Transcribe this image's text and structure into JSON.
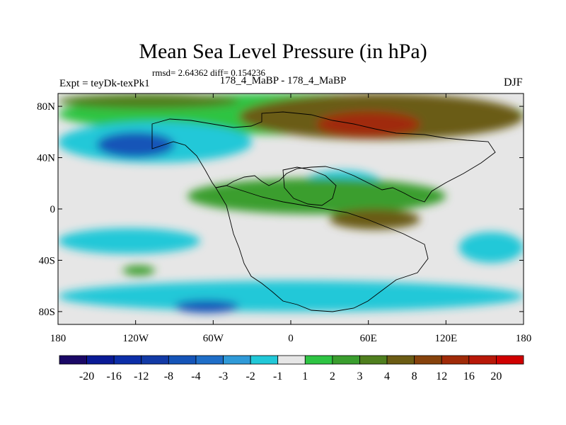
{
  "chart_data": {
    "type": "heatmap",
    "title": "Mean Sea Level Pressure (in hPa)",
    "subtitle": "rmsd= 2.64362 diff= 0.154236",
    "left_label": "Expt = teyDk-texPk1",
    "center_label": "178_4_MaBP - 178_4_MaBP",
    "right_label": "DJF",
    "x_ticks": [
      "180",
      "120W",
      "60W",
      "0",
      "60E",
      "120E",
      "180"
    ],
    "x_tick_values": [
      -180,
      -120,
      -60,
      0,
      60,
      120,
      180
    ],
    "y_ticks": [
      "80N",
      "40N",
      "0",
      "40S",
      "80S"
    ],
    "y_tick_values": [
      80,
      40,
      0,
      -40,
      -80
    ],
    "xlim": [
      -180,
      180
    ],
    "ylim": [
      -90,
      90
    ],
    "colorbar_levels": [
      "-20",
      "-16",
      "-12",
      "-8",
      "-4",
      "-3",
      "-2",
      "-1",
      "1",
      "2",
      "3",
      "4",
      "8",
      "12",
      "16",
      "20"
    ],
    "colorbar_colors": [
      "#1a0866",
      "#0a1a96",
      "#0c2ea8",
      "#123aa6",
      "#1554b8",
      "#1f6ec8",
      "#2f9ad8",
      "#21c8d8",
      "#e6e6e6",
      "#2ec443",
      "#3a9e2e",
      "#4f7f1e",
      "#6b5c14",
      "#86420c",
      "#a02a08",
      "#b81808",
      "#d00000"
    ],
    "regions": [
      {
        "level": 1,
        "lat": 74,
        "lon_min": -180,
        "lon_max": 180,
        "lat_span": 16
      },
      {
        "level": 3,
        "lat": 84,
        "lon_min": -180,
        "lon_max": -40,
        "lat_span": 6
      },
      {
        "level": 4,
        "lat": 72,
        "lon_min": -40,
        "lon_max": 180,
        "lat_span": 18
      },
      {
        "level": 12,
        "lat": 66,
        "lon_min": 20,
        "lon_max": 100,
        "lat_span": 10
      },
      {
        "level": -2,
        "lat": 52,
        "lon_min": -180,
        "lon_max": -30,
        "lat_span": 16
      },
      {
        "level": -8,
        "lat": 50,
        "lon_min": -150,
        "lon_max": -90,
        "lat_span": 10
      },
      {
        "level": -2,
        "lat": 20,
        "lon_min": 10,
        "lon_max": 70,
        "lat_span": 10
      },
      {
        "level": 2,
        "lat": 10,
        "lon_min": -80,
        "lon_max": 120,
        "lat_span": 14
      },
      {
        "level": 4,
        "lat": -8,
        "lon_min": 30,
        "lon_max": 100,
        "lat_span": 8
      },
      {
        "level": -2,
        "lat": -25,
        "lon_min": -180,
        "lon_max": -70,
        "lat_span": 10
      },
      {
        "level": -2,
        "lat": -30,
        "lon_min": 130,
        "lon_max": 180,
        "lat_span": 12
      },
      {
        "level": 2,
        "lat": -48,
        "lon_min": -130,
        "lon_max": -105,
        "lat_span": 4
      },
      {
        "level": -2,
        "lat": -68,
        "lon_min": -180,
        "lon_max": 180,
        "lat_span": 12
      },
      {
        "level": -8,
        "lat": -76,
        "lon_min": -90,
        "lon_max": -40,
        "lat_span": 5
      }
    ]
  }
}
